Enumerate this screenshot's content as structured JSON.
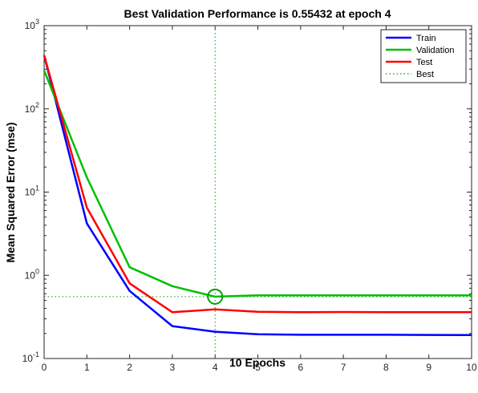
{
  "chart_data": {
    "type": "line",
    "title": "Best Validation Performance is 0.55432 at epoch 4",
    "xlabel": "10 Epochs",
    "ylabel": "Mean Squared Error  (mse)",
    "xlim": [
      0,
      10
    ],
    "ylim": [
      0.1,
      1000
    ],
    "yscale": "log",
    "x_ticks": [
      "0",
      "1",
      "2",
      "3",
      "4",
      "5",
      "6",
      "7",
      "8",
      "9",
      "10"
    ],
    "y_ticks": [
      {
        "value": 0.1,
        "base": "10",
        "exp": "-1"
      },
      {
        "value": 1,
        "base": "10",
        "exp": "0"
      },
      {
        "value": 10,
        "base": "10",
        "exp": "1"
      },
      {
        "value": 100,
        "base": "10",
        "exp": "2"
      },
      {
        "value": 1000,
        "base": "10",
        "exp": "3"
      }
    ],
    "x": [
      0,
      1,
      2,
      3,
      4,
      5,
      6,
      7,
      8,
      9,
      10
    ],
    "series": [
      {
        "name": "Train",
        "color": "#0000ff",
        "values": [
          440,
          4.2,
          0.65,
          0.245,
          0.21,
          0.196,
          0.193,
          0.193,
          0.193,
          0.192,
          0.191
        ]
      },
      {
        "name": "Validation",
        "color": "#00c000",
        "values": [
          290,
          15,
          1.25,
          0.74,
          0.554,
          0.575,
          0.575,
          0.575,
          0.575,
          0.575,
          0.575
        ]
      },
      {
        "name": "Test",
        "color": "#ff0000",
        "values": [
          440,
          6.5,
          0.8,
          0.36,
          0.39,
          0.365,
          0.36,
          0.362,
          0.36,
          0.36,
          0.36
        ]
      }
    ],
    "best": {
      "name": "Best",
      "epoch": 4,
      "value": 0.55432,
      "color": "#00a000"
    },
    "legend_position": "top-right",
    "grid": false
  }
}
